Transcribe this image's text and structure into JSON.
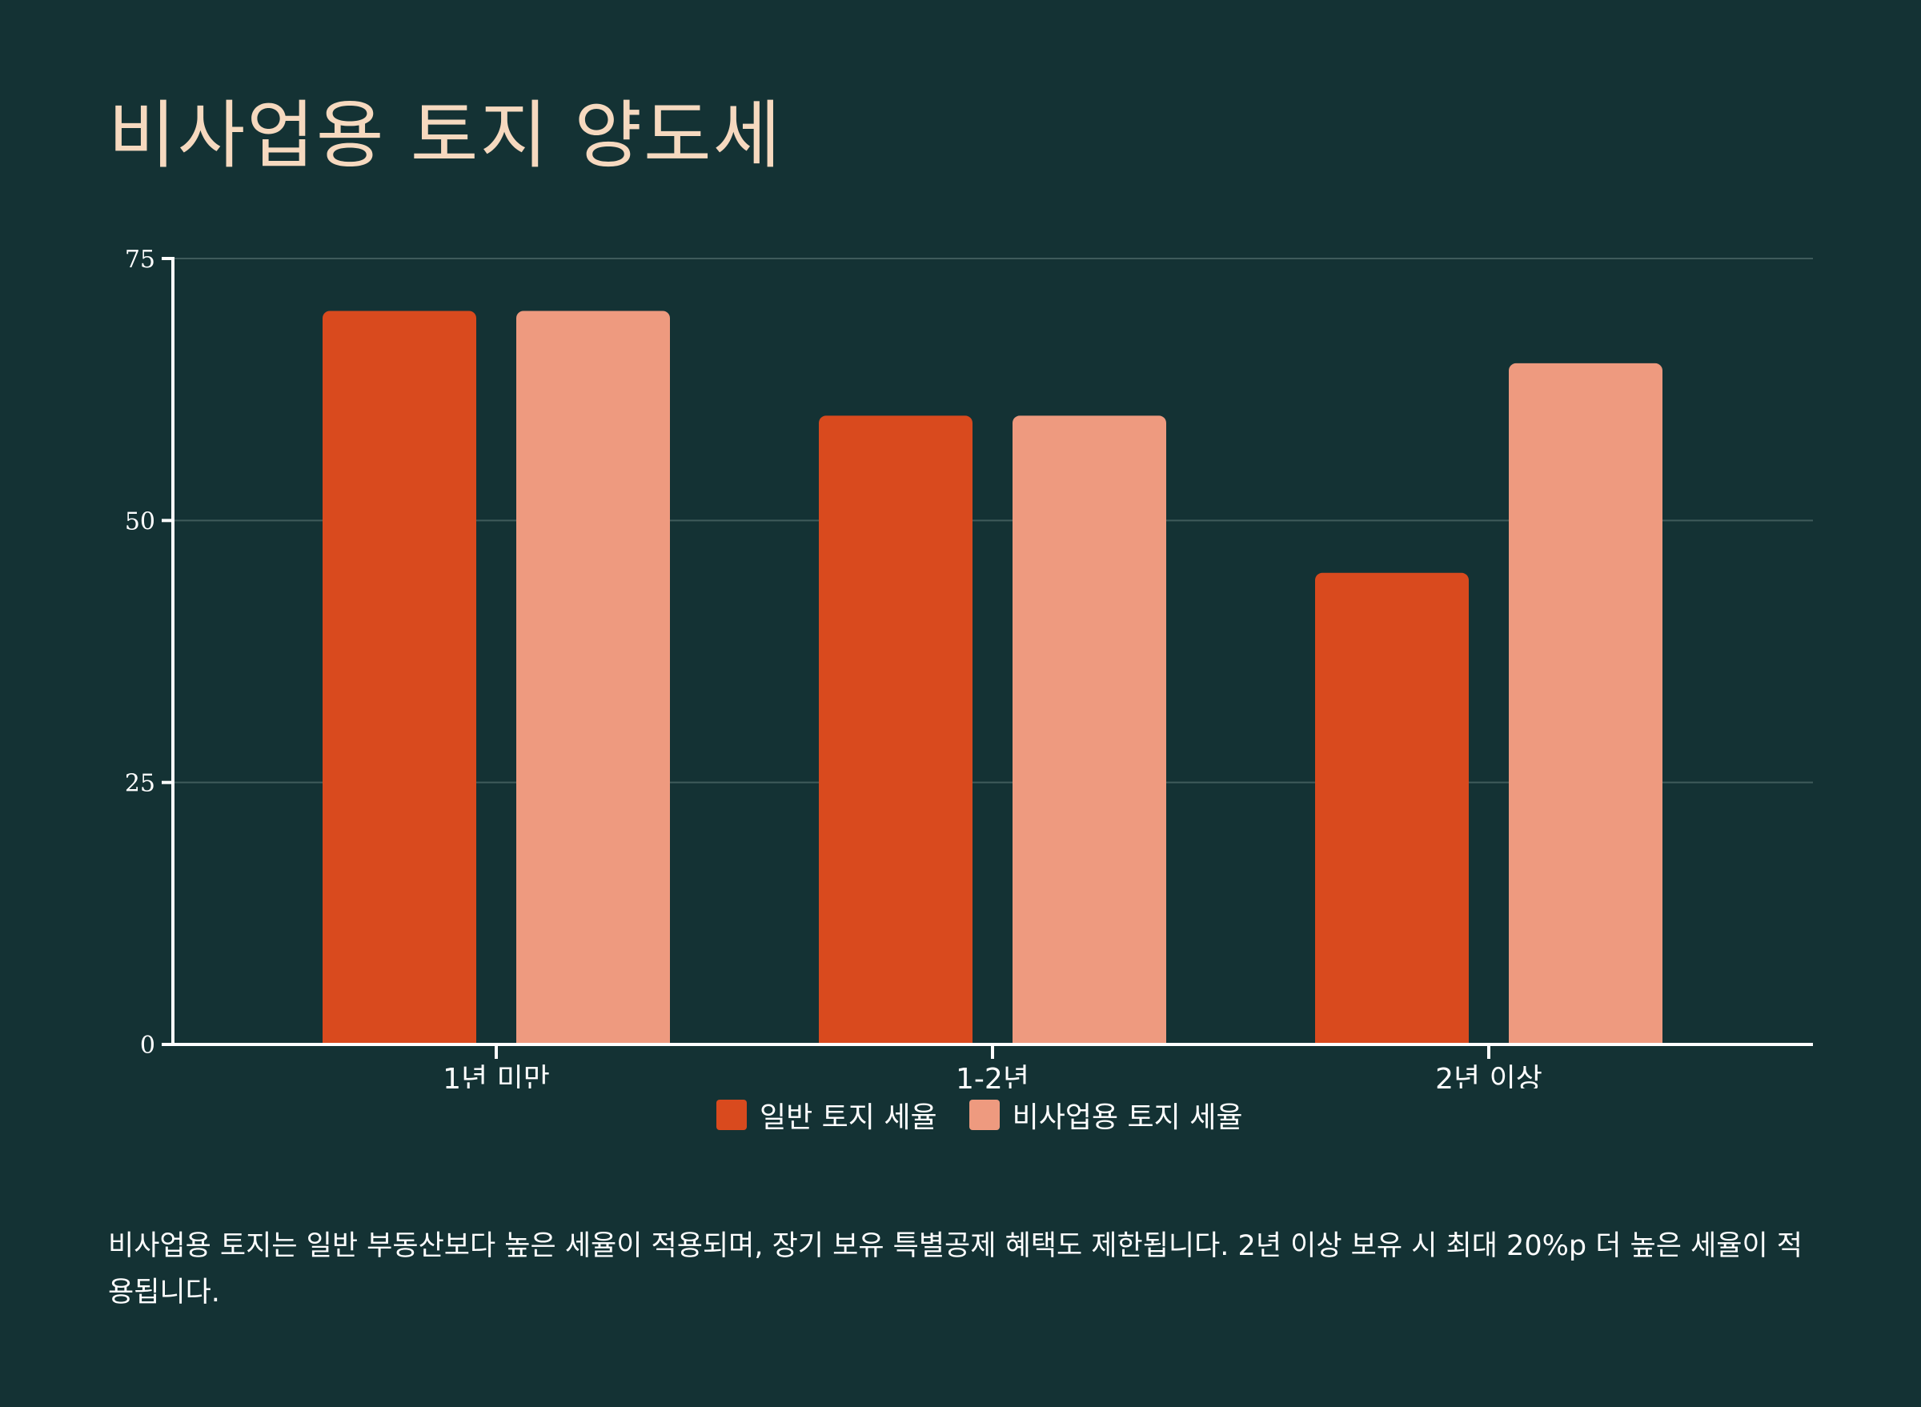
{
  "page": {
    "title": "비사업용 토지 양도세",
    "note": "비사업용 토지는 일반 부동산보다 높은 세율이 적용되며, 장기 보유 특별공제 혜택도 제한됩니다. 2년 이상 보유 시 최대 20%p 더 높은 세율이 적용됩니다."
  },
  "colors": {
    "background": "#143234",
    "title": "#f6d9bf",
    "series_general": "#d94a1e",
    "series_nonbusiness": "#ee9a7f",
    "grid": "#3f5b5b",
    "axis": "#ffffff"
  },
  "chart_data": {
    "type": "bar",
    "title": "비사업용 토지 양도세",
    "categories": [
      "1년 미만",
      "1-2년",
      "2년 이상"
    ],
    "series": [
      {
        "name": "일반 토지 세율",
        "values": [
          70,
          60,
          45
        ]
      },
      {
        "name": "비사업용 토지 세율",
        "values": [
          70,
          60,
          65
        ]
      }
    ],
    "ylim": [
      0,
      75
    ],
    "yticks": [
      0,
      25,
      50,
      75
    ],
    "xlabel": "",
    "ylabel": "",
    "grid": true,
    "legend": "bottom-center"
  }
}
